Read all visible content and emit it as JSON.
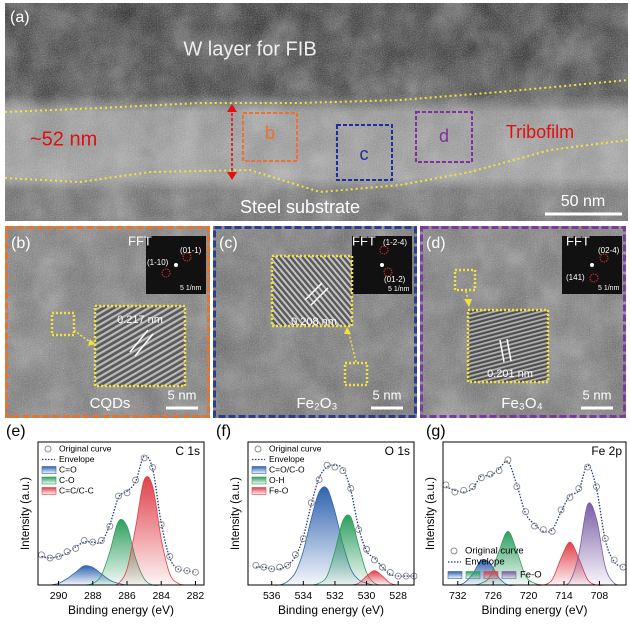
{
  "panel_a": {
    "label": "(a)",
    "w_layer": "W layer for FIB",
    "thickness": "~52 nm",
    "box_b": "b",
    "box_c": "c",
    "box_d": "d",
    "tribofilm": "Tribofilm",
    "substrate": "Steel substrate",
    "scale": "50 nm"
  },
  "panels": [
    {
      "label": "(b)",
      "fft": "FFT",
      "spots": [
        "(01-1)",
        "(1-10)"
      ],
      "fft_scale": "5 1/nm",
      "spacing": "0.217 nm",
      "material": "CQDs",
      "scale": "5 nm"
    },
    {
      "label": "(c)",
      "fft": "FFT",
      "spots": [
        "(1-2-4)",
        "(01-2)"
      ],
      "fft_scale": "5 1/nm",
      "spacing": "0.208 nm",
      "material": "Fe₂O₃",
      "scale": "5 nm"
    },
    {
      "label": "(d)",
      "fft": "FFT",
      "spots": [
        "(02-4)",
        "(141)"
      ],
      "fft_scale": "5 1/nm",
      "spacing": "0.201 nm",
      "material": "Fe₃O₄",
      "scale": "5 nm"
    }
  ],
  "chart_data": [
    {
      "type": "line",
      "panel": "(e)",
      "annotation": "C 1s",
      "x_label": "Binding energy (eV)",
      "y_label": "Intensity (a.u.)",
      "x": [
        291,
        290.5,
        290,
        289.5,
        289,
        288.5,
        288,
        287.5,
        287,
        286.5,
        286,
        285.5,
        285,
        284.5,
        284,
        283.5,
        283,
        282.5,
        282
      ],
      "xlim": [
        291.2,
        281.5
      ],
      "xticks": [
        290,
        288,
        286,
        284,
        282
      ],
      "ylim": [
        0,
        90
      ],
      "legend": "upper left",
      "series": [
        {
          "name": "Original curve",
          "style": "markers",
          "color": "#8a8a8a",
          "values": [
            19,
            17,
            18,
            21,
            23,
            28,
            27,
            28,
            37,
            56,
            58,
            66,
            80,
            74,
            38,
            18,
            10,
            9,
            8
          ]
        },
        {
          "name": "Envelope",
          "style": "dotted",
          "color": "#1f3d7a",
          "values": [
            18,
            17,
            18,
            20,
            24,
            27,
            27,
            27,
            38,
            55,
            59,
            65,
            81,
            73,
            39,
            17,
            10,
            9,
            8
          ]
        },
        {
          "name": "C=O",
          "style": "area",
          "color": "#2f63b0",
          "values": [
            0,
            0,
            1,
            4,
            8,
            12,
            11,
            7,
            3,
            1,
            0,
            0,
            0,
            0,
            0,
            0,
            0,
            0,
            0
          ]
        },
        {
          "name": "C-O",
          "style": "area",
          "color": "#2e9e5e",
          "values": [
            0,
            0,
            0,
            0,
            0,
            0,
            1,
            6,
            21,
            40,
            37,
            17,
            4,
            0,
            0,
            0,
            0,
            0,
            0
          ]
        },
        {
          "name": "C=C/C-C",
          "style": "area",
          "color": "#e0404a",
          "values": [
            0,
            0,
            0,
            0,
            0,
            0,
            0,
            0,
            0,
            1,
            10,
            36,
            66,
            62,
            29,
            7,
            1,
            0,
            0
          ]
        }
      ]
    },
    {
      "type": "line",
      "panel": "(f)",
      "annotation": "O 1s",
      "x_label": "Binding energy (eV)",
      "y_label": "Intensity (a.u.)",
      "x": [
        537,
        536.5,
        536,
        535.5,
        535,
        534.5,
        534,
        533.5,
        533,
        532.5,
        532,
        531.5,
        531,
        530.5,
        530,
        529.5,
        529,
        528.5,
        528,
        527.5,
        527
      ],
      "xlim": [
        537.5,
        527
      ],
      "xticks": [
        536,
        534,
        532,
        530,
        528
      ],
      "ylim": [
        0,
        80
      ],
      "legend": "upper left",
      "series": [
        {
          "name": "Original curve",
          "style": "markers",
          "color": "#8a8a8a",
          "values": [
            11,
            10,
            9,
            10,
            11,
            17,
            26,
            46,
            59,
            67,
            66,
            64,
            54,
            31,
            20,
            14,
            10,
            7,
            5,
            5,
            5
          ]
        },
        {
          "name": "Envelope",
          "style": "dotted",
          "color": "#1f3d7a",
          "values": [
            10,
            10,
            9,
            9,
            11,
            16,
            27,
            45,
            60,
            66,
            67,
            65,
            53,
            32,
            19,
            15,
            10,
            6,
            5,
            5,
            5
          ]
        },
        {
          "name": "C=O/C-O",
          "style": "area",
          "color": "#2f63b0",
          "values": [
            0,
            0,
            0,
            0,
            2,
            7,
            19,
            37,
            52,
            54,
            41,
            23,
            9,
            3,
            1,
            0,
            0,
            0,
            0,
            0,
            0
          ]
        },
        {
          "name": "O-H",
          "style": "area",
          "color": "#2e9e5e",
          "values": [
            0,
            0,
            0,
            0,
            0,
            0,
            0,
            0,
            1,
            5,
            19,
            36,
            38,
            22,
            7,
            1,
            0,
            0,
            0,
            0,
            0
          ]
        },
        {
          "name": "Fe-O",
          "style": "area",
          "color": "#e0404a",
          "values": [
            0,
            0,
            0,
            0,
            0,
            0,
            0,
            0,
            0,
            0,
            0,
            0,
            0,
            1,
            5,
            8,
            5,
            1,
            0,
            0,
            0
          ]
        }
      ]
    },
    {
      "type": "line",
      "panel": "(g)",
      "annotation": "Fe 2p",
      "x_label": "Binding energy (eV)",
      "y_label": "Intensity (a.u.)",
      "x": [
        734,
        732.5,
        731,
        729.5,
        728,
        726.5,
        725,
        723.5,
        722,
        720.5,
        719,
        717.5,
        716,
        714.5,
        713,
        711.5,
        710,
        708.5,
        707,
        705.5,
        704
      ],
      "xlim": [
        734.5,
        703.5
      ],
      "xticks": [
        732,
        726,
        720,
        714,
        708
      ],
      "ylim": [
        0,
        80
      ],
      "legend": "lower left",
      "series": [
        {
          "name": "Original curve",
          "style": "markers",
          "color": "#8a8a8a",
          "values": [
            56,
            52,
            53,
            55,
            60,
            62,
            64,
            70,
            55,
            41,
            33,
            31,
            30,
            42,
            49,
            54,
            66,
            55,
            26,
            14,
            10
          ]
        },
        {
          "name": "Envelope",
          "style": "dotted",
          "color": "#1f3d7a",
          "values": [
            55,
            53,
            52,
            54,
            61,
            61,
            65,
            69,
            56,
            40,
            34,
            30,
            31,
            41,
            50,
            53,
            67,
            54,
            25,
            13,
            10
          ]
        },
        {
          "style": "area",
          "color": "#2f63b0",
          "values": [
            0,
            0,
            1,
            6,
            14,
            12,
            4,
            0,
            0,
            0,
            0,
            0,
            0,
            0,
            0,
            0,
            0,
            0,
            0,
            0,
            0
          ]
        },
        {
          "style": "area",
          "color": "#2e9e5e",
          "values": [
            0,
            0,
            0,
            0,
            1,
            5,
            19,
            30,
            19,
            5,
            1,
            0,
            0,
            0,
            0,
            0,
            0,
            0,
            0,
            0,
            0
          ]
        },
        {
          "style": "area",
          "color": "#e0404a",
          "values": [
            0,
            0,
            0,
            0,
            0,
            0,
            0,
            0,
            0,
            0,
            0,
            0,
            3,
            15,
            24,
            15,
            3,
            0,
            0,
            0,
            0
          ]
        },
        {
          "name": "Fe-O",
          "style": "area",
          "color": "#7b5ea7",
          "values": [
            0,
            0,
            0,
            0,
            0,
            0,
            0,
            0,
            0,
            0,
            0,
            0,
            0,
            0,
            2,
            17,
            45,
            37,
            10,
            1,
            0
          ]
        }
      ]
    }
  ]
}
